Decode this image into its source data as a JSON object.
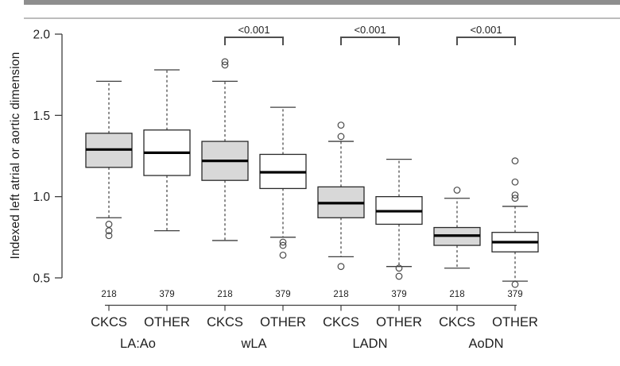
{
  "figure": {
    "top_bar_color": "#8e8e8e",
    "divider_color": "#bcbcbc",
    "text_color": "#1f1f1f",
    "axis_color": "#3f3f3f",
    "median_color": "#000000",
    "bracket_color": "#4f4f4f"
  },
  "chart_data": {
    "type": "boxplot",
    "title": "",
    "ylabel": "Indexed left atrial or aortic dimension",
    "xlabel": "",
    "ylim": [
      0.5,
      2.0
    ],
    "yticks": [
      "0.5",
      "1.0",
      "1.5",
      "2.0"
    ],
    "grid": false,
    "legend": "none",
    "series_labels": [
      "CKCS",
      "OTHER"
    ],
    "groups": [
      {
        "label": "LA:Ao",
        "significance": "",
        "boxes": [
          {
            "category": "CKCS",
            "n": "218",
            "fill": "#d8d8d8",
            "whisker_low": 0.87,
            "q1": 1.18,
            "median": 1.29,
            "q3": 1.39,
            "whisker_high": 1.71,
            "outliers": [
              0.83,
              0.79,
              0.76
            ]
          },
          {
            "category": "OTHER",
            "n": "379",
            "fill": "#ffffff",
            "whisker_low": 0.79,
            "q1": 1.13,
            "median": 1.27,
            "q3": 1.41,
            "whisker_high": 1.78,
            "outliers": []
          }
        ]
      },
      {
        "label": "wLA",
        "significance": "<0.001",
        "boxes": [
          {
            "category": "CKCS",
            "n": "218",
            "fill": "#d8d8d8",
            "whisker_low": 0.73,
            "q1": 1.1,
            "median": 1.22,
            "q3": 1.34,
            "whisker_high": 1.71,
            "outliers": [
              1.83,
              1.81
            ]
          },
          {
            "category": "OTHER",
            "n": "379",
            "fill": "#ffffff",
            "whisker_low": 0.75,
            "q1": 1.05,
            "median": 1.15,
            "q3": 1.26,
            "whisker_high": 1.55,
            "outliers": [
              0.72,
              0.7,
              0.64
            ]
          }
        ]
      },
      {
        "label": "LADN",
        "significance": "<0.001",
        "boxes": [
          {
            "category": "CKCS",
            "n": "218",
            "fill": "#d8d8d8",
            "whisker_low": 0.63,
            "q1": 0.87,
            "median": 0.96,
            "q3": 1.06,
            "whisker_high": 1.34,
            "outliers": [
              1.44,
              1.37,
              0.57
            ]
          },
          {
            "category": "OTHER",
            "n": "379",
            "fill": "#ffffff",
            "whisker_low": 0.57,
            "q1": 0.83,
            "median": 0.91,
            "q3": 1.0,
            "whisker_high": 1.23,
            "outliers": [
              0.56,
              0.51
            ]
          }
        ]
      },
      {
        "label": "AoDN",
        "significance": "<0.001",
        "boxes": [
          {
            "category": "CKCS",
            "n": "218",
            "fill": "#d8d8d8",
            "whisker_low": 0.56,
            "q1": 0.7,
            "median": 0.76,
            "q3": 0.81,
            "whisker_high": 0.99,
            "outliers": [
              1.04
            ]
          },
          {
            "category": "OTHER",
            "n": "379",
            "fill": "#ffffff",
            "whisker_low": 0.48,
            "q1": 0.66,
            "median": 0.72,
            "q3": 0.78,
            "whisker_high": 0.94,
            "outliers": [
              1.22,
              1.09,
              1.01,
              0.99,
              0.46
            ]
          }
        ]
      }
    ]
  }
}
